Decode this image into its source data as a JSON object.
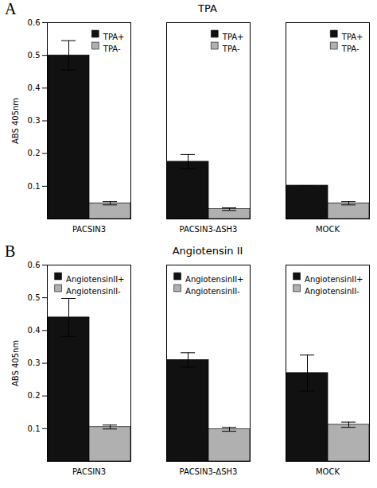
{
  "chart_data": [
    {
      "type": "bar",
      "title": "TPA",
      "annotation": "A",
      "categories": [
        "PACSIN3",
        "PACSIN3-ΔSH3",
        "MOCK"
      ],
      "series": [
        {
          "name": "TPA+",
          "color": "#111111",
          "values": [
            0.5,
            0.175,
            0.102
          ],
          "errors": [
            0.045,
            0.022,
            0.0
          ]
        },
        {
          "name": "TPA-",
          "color": "#b0b0b0",
          "values": [
            0.048,
            0.03,
            0.048
          ],
          "errors": [
            0.005,
            0.004,
            0.005
          ]
        }
      ],
      "ylabel": "ABS 405nm",
      "ylim": [
        0,
        0.6
      ],
      "yticks": [
        0.1,
        0.2,
        0.3,
        0.4,
        0.5,
        0.6
      ],
      "legend": "upper right",
      "grid": false
    },
    {
      "type": "bar",
      "title": "Angiotensin II",
      "annotation": "B",
      "categories": [
        "PACSIN3",
        "PACSIN3-ΔSH3",
        "MOCK"
      ],
      "series": [
        {
          "name": "AngiotensinII+",
          "color": "#111111",
          "values": [
            0.44,
            0.31,
            0.27
          ],
          "errors": [
            0.058,
            0.022,
            0.055
          ]
        },
        {
          "name": "AngiotensinII-",
          "color": "#b0b0b0",
          "values": [
            0.105,
            0.098,
            0.112
          ],
          "errors": [
            0.006,
            0.006,
            0.008
          ]
        }
      ],
      "ylabel": "ABS 405nm",
      "ylim": [
        0,
        0.6
      ],
      "yticks": [
        0.1,
        0.2,
        0.3,
        0.4,
        0.5,
        0.6
      ],
      "legend": "upper right",
      "grid": false
    }
  ]
}
